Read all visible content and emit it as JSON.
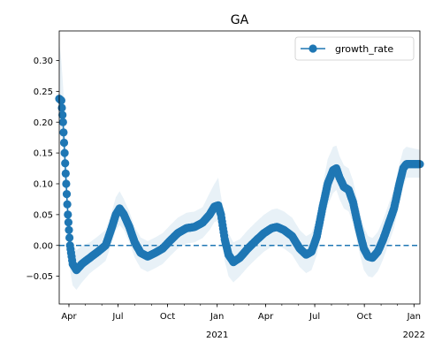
{
  "chart_data": {
    "type": "line",
    "title": "GA",
    "xlabel": "",
    "ylabel": "",
    "x_range": [
      "2020-03-14",
      "2022-01-12"
    ],
    "ylim": [
      -0.095,
      0.348
    ],
    "y_ticks": [
      -0.05,
      0.0,
      0.05,
      0.1,
      0.15,
      0.2,
      0.25,
      0.3
    ],
    "y_tick_labels": [
      "−0.05",
      "0.00",
      "0.05",
      "0.10",
      "0.15",
      "0.20",
      "0.25",
      "0.30"
    ],
    "x_ticks": [
      {
        "date": "2020-04-01",
        "label": "Apr",
        "sublabel": ""
      },
      {
        "date": "2020-07-01",
        "label": "Jul",
        "sublabel": ""
      },
      {
        "date": "2020-10-01",
        "label": "Oct",
        "sublabel": ""
      },
      {
        "date": "2021-01-01",
        "label": "Jan",
        "sublabel": "2021"
      },
      {
        "date": "2021-04-01",
        "label": "Apr",
        "sublabel": ""
      },
      {
        "date": "2021-07-01",
        "label": "Jul",
        "sublabel": ""
      },
      {
        "date": "2021-10-01",
        "label": "Oct",
        "sublabel": ""
      },
      {
        "date": "2022-01-01",
        "label": "Jan",
        "sublabel": "2022"
      }
    ],
    "reference_line": {
      "y": 0.0,
      "style": "dashed"
    },
    "grid": false,
    "legend_position": "top-right",
    "series": [
      {
        "name": "growth_rate",
        "color": "#1f77b4",
        "band_color": "#1f77b4",
        "points": [
          {
            "x": "2020-03-14",
            "y": 0.238,
            "lo": 0.18,
            "hi": 0.33
          },
          {
            "x": "2020-03-18",
            "y": 0.235,
            "lo": 0.18,
            "hi": 0.3
          },
          {
            "x": "2020-03-21",
            "y": 0.2,
            "lo": 0.15,
            "hi": 0.26
          },
          {
            "x": "2020-03-24",
            "y": 0.15,
            "lo": 0.1,
            "hi": 0.21
          },
          {
            "x": "2020-03-27",
            "y": 0.1,
            "lo": 0.06,
            "hi": 0.15
          },
          {
            "x": "2020-03-30",
            "y": 0.05,
            "lo": 0.01,
            "hi": 0.09
          },
          {
            "x": "2020-04-03",
            "y": 0.0,
            "lo": -0.04,
            "hi": 0.04
          },
          {
            "x": "2020-04-08",
            "y": -0.03,
            "lo": -0.065,
            "hi": 0.005
          },
          {
            "x": "2020-04-15",
            "y": -0.04,
            "lo": -0.072,
            "hi": -0.008
          },
          {
            "x": "2020-04-25",
            "y": -0.03,
            "lo": -0.06,
            "hi": 0.0
          },
          {
            "x": "2020-05-10",
            "y": -0.02,
            "lo": -0.045,
            "hi": 0.005
          },
          {
            "x": "2020-05-25",
            "y": -0.01,
            "lo": -0.035,
            "hi": 0.015
          },
          {
            "x": "2020-06-08",
            "y": 0.0,
            "lo": -0.025,
            "hi": 0.025
          },
          {
            "x": "2020-06-18",
            "y": 0.025,
            "lo": 0.0,
            "hi": 0.05
          },
          {
            "x": "2020-06-27",
            "y": 0.05,
            "lo": 0.025,
            "hi": 0.078
          },
          {
            "x": "2020-07-04",
            "y": 0.06,
            "lo": 0.033,
            "hi": 0.088
          },
          {
            "x": "2020-07-12",
            "y": 0.05,
            "lo": 0.025,
            "hi": 0.075
          },
          {
            "x": "2020-07-22",
            "y": 0.03,
            "lo": 0.005,
            "hi": 0.055
          },
          {
            "x": "2020-08-01",
            "y": 0.005,
            "lo": -0.02,
            "hi": 0.03
          },
          {
            "x": "2020-08-12",
            "y": -0.012,
            "lo": -0.037,
            "hi": 0.013
          },
          {
            "x": "2020-08-25",
            "y": -0.018,
            "lo": -0.043,
            "hi": 0.007
          },
          {
            "x": "2020-09-08",
            "y": -0.012,
            "lo": -0.037,
            "hi": 0.013
          },
          {
            "x": "2020-09-22",
            "y": -0.005,
            "lo": -0.03,
            "hi": 0.02
          },
          {
            "x": "2020-10-06",
            "y": 0.008,
            "lo": -0.017,
            "hi": 0.033
          },
          {
            "x": "2020-10-20",
            "y": 0.02,
            "lo": -0.005,
            "hi": 0.045
          },
          {
            "x": "2020-11-05",
            "y": 0.028,
            "lo": 0.003,
            "hi": 0.053
          },
          {
            "x": "2020-11-20",
            "y": 0.03,
            "lo": 0.005,
            "hi": 0.055
          },
          {
            "x": "2020-12-05",
            "y": 0.037,
            "lo": 0.012,
            "hi": 0.062
          },
          {
            "x": "2020-12-18",
            "y": 0.05,
            "lo": 0.025,
            "hi": 0.085
          },
          {
            "x": "2020-12-27",
            "y": 0.063,
            "lo": 0.038,
            "hi": 0.1
          },
          {
            "x": "2021-01-03",
            "y": 0.065,
            "lo": 0.04,
            "hi": 0.11
          },
          {
            "x": "2021-01-08",
            "y": 0.05,
            "lo": 0.02,
            "hi": 0.08
          },
          {
            "x": "2021-01-15",
            "y": 0.01,
            "lo": -0.025,
            "hi": 0.045
          },
          {
            "x": "2021-01-22",
            "y": -0.015,
            "lo": -0.05,
            "hi": 0.02
          },
          {
            "x": "2021-01-31",
            "y": -0.027,
            "lo": -0.06,
            "hi": 0.005
          },
          {
            "x": "2021-02-12",
            "y": -0.02,
            "lo": -0.05,
            "hi": 0.01
          },
          {
            "x": "2021-02-27",
            "y": -0.005,
            "lo": -0.035,
            "hi": 0.025
          },
          {
            "x": "2021-03-14",
            "y": 0.008,
            "lo": -0.022,
            "hi": 0.038
          },
          {
            "x": "2021-03-29",
            "y": 0.02,
            "lo": -0.01,
            "hi": 0.05
          },
          {
            "x": "2021-04-12",
            "y": 0.028,
            "lo": -0.002,
            "hi": 0.058
          },
          {
            "x": "2021-04-22",
            "y": 0.03,
            "lo": 0.0,
            "hi": 0.06
          },
          {
            "x": "2021-05-05",
            "y": 0.025,
            "lo": -0.005,
            "hi": 0.055
          },
          {
            "x": "2021-05-20",
            "y": 0.015,
            "lo": -0.015,
            "hi": 0.045
          },
          {
            "x": "2021-06-03",
            "y": -0.005,
            "lo": -0.035,
            "hi": 0.025
          },
          {
            "x": "2021-06-15",
            "y": -0.015,
            "lo": -0.045,
            "hi": 0.015
          },
          {
            "x": "2021-06-25",
            "y": -0.01,
            "lo": -0.04,
            "hi": 0.02
          },
          {
            "x": "2021-07-05",
            "y": 0.015,
            "lo": -0.015,
            "hi": 0.045
          },
          {
            "x": "2021-07-15",
            "y": 0.06,
            "lo": 0.025,
            "hi": 0.095
          },
          {
            "x": "2021-07-25",
            "y": 0.1,
            "lo": 0.065,
            "hi": 0.14
          },
          {
            "x": "2021-08-04",
            "y": 0.122,
            "lo": 0.085,
            "hi": 0.16
          },
          {
            "x": "2021-08-10",
            "y": 0.125,
            "lo": 0.09,
            "hi": 0.162
          },
          {
            "x": "2021-08-16",
            "y": 0.11,
            "lo": 0.075,
            "hi": 0.145
          },
          {
            "x": "2021-08-24",
            "y": 0.095,
            "lo": 0.06,
            "hi": 0.13
          },
          {
            "x": "2021-09-02",
            "y": 0.09,
            "lo": 0.055,
            "hi": 0.125
          },
          {
            "x": "2021-09-10",
            "y": 0.07,
            "lo": 0.035,
            "hi": 0.105
          },
          {
            "x": "2021-09-20",
            "y": 0.03,
            "lo": -0.005,
            "hi": 0.065
          },
          {
            "x": "2021-09-30",
            "y": -0.005,
            "lo": -0.04,
            "hi": 0.03
          },
          {
            "x": "2021-10-08",
            "y": -0.018,
            "lo": -0.05,
            "hi": 0.015
          },
          {
            "x": "2021-10-16",
            "y": -0.02,
            "lo": -0.052,
            "hi": 0.012
          },
          {
            "x": "2021-10-26",
            "y": -0.01,
            "lo": -0.042,
            "hi": 0.022
          },
          {
            "x": "2021-11-05",
            "y": 0.01,
            "lo": -0.022,
            "hi": 0.042
          },
          {
            "x": "2021-11-15",
            "y": 0.035,
            "lo": 0.003,
            "hi": 0.067
          },
          {
            "x": "2021-11-25",
            "y": 0.06,
            "lo": 0.028,
            "hi": 0.092
          },
          {
            "x": "2021-12-05",
            "y": 0.1,
            "lo": 0.068,
            "hi": 0.132
          },
          {
            "x": "2021-12-12",
            "y": 0.125,
            "lo": 0.095,
            "hi": 0.155
          },
          {
            "x": "2021-12-18",
            "y": 0.132,
            "lo": 0.11,
            "hi": 0.16
          },
          {
            "x": "2022-01-12",
            "y": 0.132,
            "lo": 0.11,
            "hi": 0.155
          }
        ]
      }
    ]
  }
}
